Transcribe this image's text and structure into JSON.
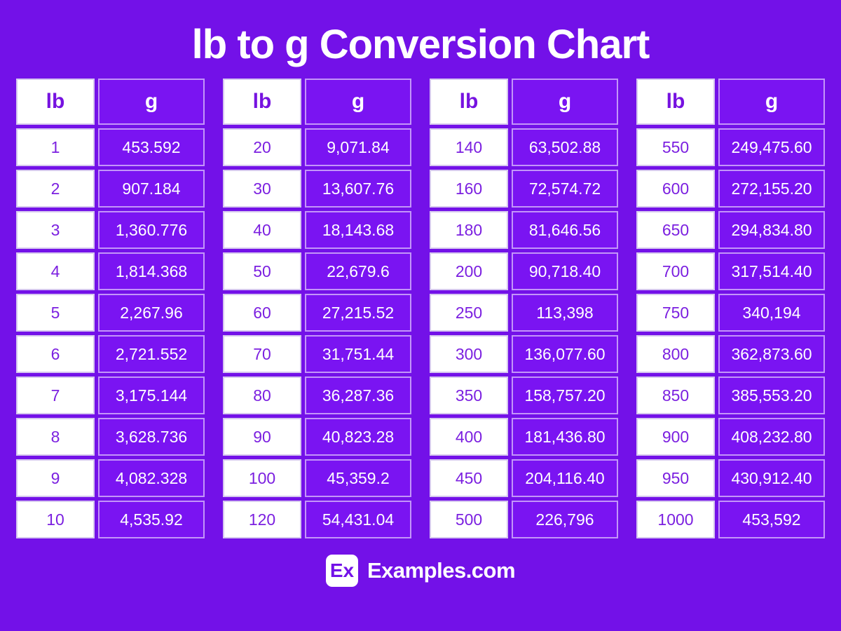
{
  "page": {
    "title": "lb to g Conversion Chart"
  },
  "colors": {
    "background_purple": "#7311E8",
    "cell_purple": "#7A14F2",
    "text_purple": "#7B1FE0",
    "white": "#FFFFFF"
  },
  "footer": {
    "logo_badge": "Ex",
    "logo_text": "Examples.com"
  },
  "chart_data": {
    "type": "table",
    "title": "lb to g Conversion Chart",
    "columns": [
      "lb",
      "g"
    ],
    "tables": [
      {
        "rows": [
          [
            "1",
            "453.592"
          ],
          [
            "2",
            "907.184"
          ],
          [
            "3",
            "1,360.776"
          ],
          [
            "4",
            "1,814.368"
          ],
          [
            "5",
            "2,267.96"
          ],
          [
            "6",
            "2,721.552"
          ],
          [
            "7",
            "3,175.144"
          ],
          [
            "8",
            "3,628.736"
          ],
          [
            "9",
            "4,082.328"
          ],
          [
            "10",
            "4,535.92"
          ]
        ]
      },
      {
        "rows": [
          [
            "20",
            "9,071.84"
          ],
          [
            "30",
            "13,607.76"
          ],
          [
            "40",
            "18,143.68"
          ],
          [
            "50",
            "22,679.6"
          ],
          [
            "60",
            "27,215.52"
          ],
          [
            "70",
            "31,751.44"
          ],
          [
            "80",
            "36,287.36"
          ],
          [
            "90",
            "40,823.28"
          ],
          [
            "100",
            "45,359.2"
          ],
          [
            "120",
            "54,431.04"
          ]
        ]
      },
      {
        "rows": [
          [
            "140",
            "63,502.88"
          ],
          [
            "160",
            "72,574.72"
          ],
          [
            "180",
            "81,646.56"
          ],
          [
            "200",
            "90,718.40"
          ],
          [
            "250",
            "113,398"
          ],
          [
            "300",
            "136,077.60"
          ],
          [
            "350",
            "158,757.20"
          ],
          [
            "400",
            "181,436.80"
          ],
          [
            "450",
            "204,116.40"
          ],
          [
            "500",
            "226,796"
          ]
        ]
      },
      {
        "rows": [
          [
            "550",
            "249,475.60"
          ],
          [
            "600",
            "272,155.20"
          ],
          [
            "650",
            "294,834.80"
          ],
          [
            "700",
            "317,514.40"
          ],
          [
            "750",
            "340,194"
          ],
          [
            "800",
            "362,873.60"
          ],
          [
            "850",
            "385,553.20"
          ],
          [
            "900",
            "408,232.80"
          ],
          [
            "950",
            "430,912.40"
          ],
          [
            "1000",
            "453,592"
          ]
        ]
      }
    ]
  }
}
